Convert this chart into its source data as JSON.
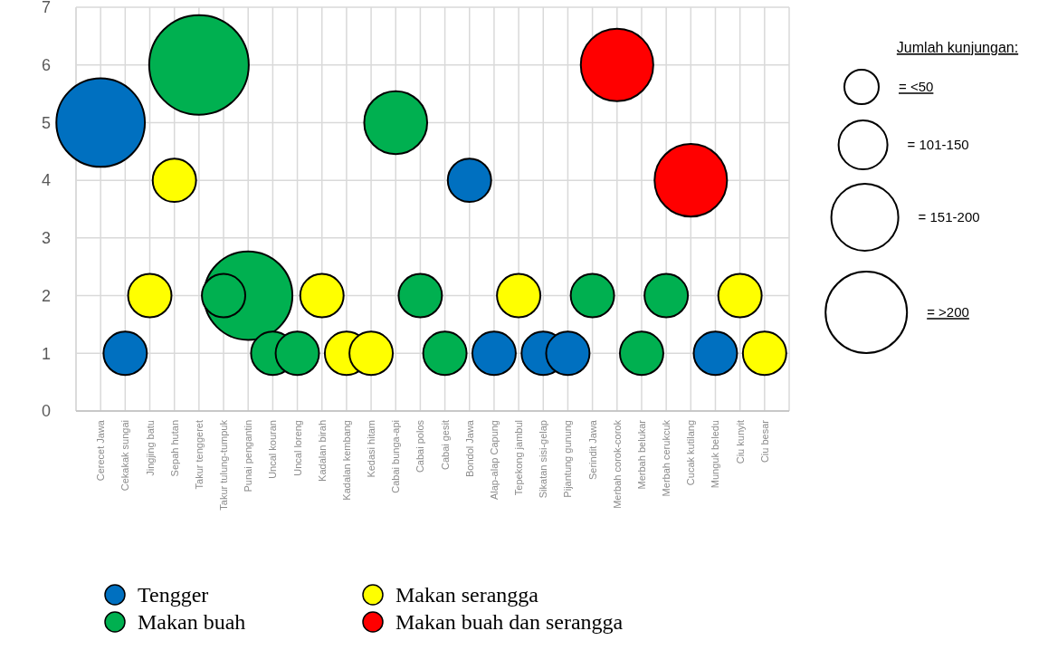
{
  "chart_data": {
    "type": "bubble",
    "categories": [
      "Cerecet Jawa",
      "Cekakak sungai",
      "Jingjing batu",
      "Sepah hutan",
      "Takur tenggeret",
      "Takur tulung-tumpuk",
      "Punai pengantin",
      "Uncal kouran",
      "Uncal loreng",
      "Kadalan birah",
      "Kadalan kembang",
      "Kedasi hitam",
      "Cabai bunga-api",
      "Cabai polos",
      "Cabai gesit",
      "Bondol Jawa",
      "Alap-alap Capung",
      "Tepekong jambul",
      "Sikatan sisi-gelap",
      "Pijantung gunung",
      "Serindit Jawa",
      "Merbah corok-corok",
      "Merbah belukar",
      "Merbah cerukcuk",
      "Cucak kutilang",
      "Munguk beledu",
      "Ciu kunyit",
      "Ciu besar"
    ],
    "series": [
      {
        "name": "Tengger",
        "color": "#0070c0",
        "values": [
          5,
          1,
          null,
          null,
          null,
          null,
          null,
          null,
          null,
          null,
          null,
          null,
          null,
          null,
          null,
          4,
          1,
          null,
          1,
          1,
          null,
          null,
          null,
          null,
          null,
          1,
          null,
          null
        ],
        "sizes": [
          0.79,
          0.19,
          null,
          null,
          null,
          null,
          null,
          null,
          null,
          null,
          null,
          null,
          null,
          null,
          null,
          0.19,
          0.19,
          null,
          0.19,
          0.19,
          null,
          null,
          null,
          null,
          null,
          0.19,
          null,
          null
        ]
      },
      {
        "name": "Makan buah",
        "color": "#00b050",
        "values": [
          null,
          null,
          null,
          null,
          6,
          2,
          2,
          1,
          1,
          null,
          null,
          null,
          5,
          2,
          1,
          null,
          null,
          null,
          null,
          null,
          2,
          null,
          1,
          2,
          null,
          null,
          null,
          null
        ],
        "sizes": [
          null,
          null,
          null,
          null,
          1,
          0.19,
          0.79,
          0.19,
          0.19,
          null,
          null,
          null,
          0.4,
          0.19,
          0.19,
          null,
          null,
          null,
          null,
          null,
          0.19,
          null,
          0.19,
          0.19,
          null,
          null,
          null,
          null
        ]
      },
      {
        "name": "Makan serangga",
        "color": "#ffff00",
        "values": [
          null,
          null,
          2,
          4,
          null,
          null,
          null,
          null,
          null,
          2,
          1,
          1,
          null,
          null,
          null,
          null,
          null,
          2,
          null,
          null,
          null,
          null,
          null,
          null,
          null,
          null,
          2,
          1
        ],
        "sizes": [
          null,
          null,
          0.19,
          0.19,
          null,
          null,
          null,
          null,
          null,
          0.19,
          0.19,
          0.19,
          null,
          null,
          null,
          null,
          null,
          0.19,
          null,
          null,
          null,
          null,
          null,
          null,
          null,
          null,
          0.19,
          0.19
        ]
      },
      {
        "name": "Makan buah dan serangga",
        "color": "#ff0000",
        "values": [
          null,
          null,
          null,
          null,
          null,
          null,
          null,
          null,
          null,
          null,
          null,
          null,
          null,
          null,
          null,
          null,
          null,
          null,
          null,
          null,
          null,
          6,
          null,
          null,
          4,
          null,
          null,
          null
        ],
        "sizes": [
          null,
          null,
          null,
          null,
          null,
          null,
          null,
          null,
          null,
          null,
          null,
          null,
          null,
          null,
          null,
          null,
          null,
          null,
          null,
          null,
          null,
          0.53,
          null,
          null,
          0.53,
          null,
          null,
          null
        ]
      }
    ],
    "ylim": [
      0,
      7
    ],
    "yticks": [
      0,
      1,
      2,
      3,
      4,
      5,
      6,
      7
    ],
    "grid": true,
    "legend": "bottom",
    "marker": "circle",
    "annotations": [
      "Jumlah kunjungan:",
      "= <50",
      "= 101-150",
      "= 151-200",
      "= >200"
    ]
  }
}
